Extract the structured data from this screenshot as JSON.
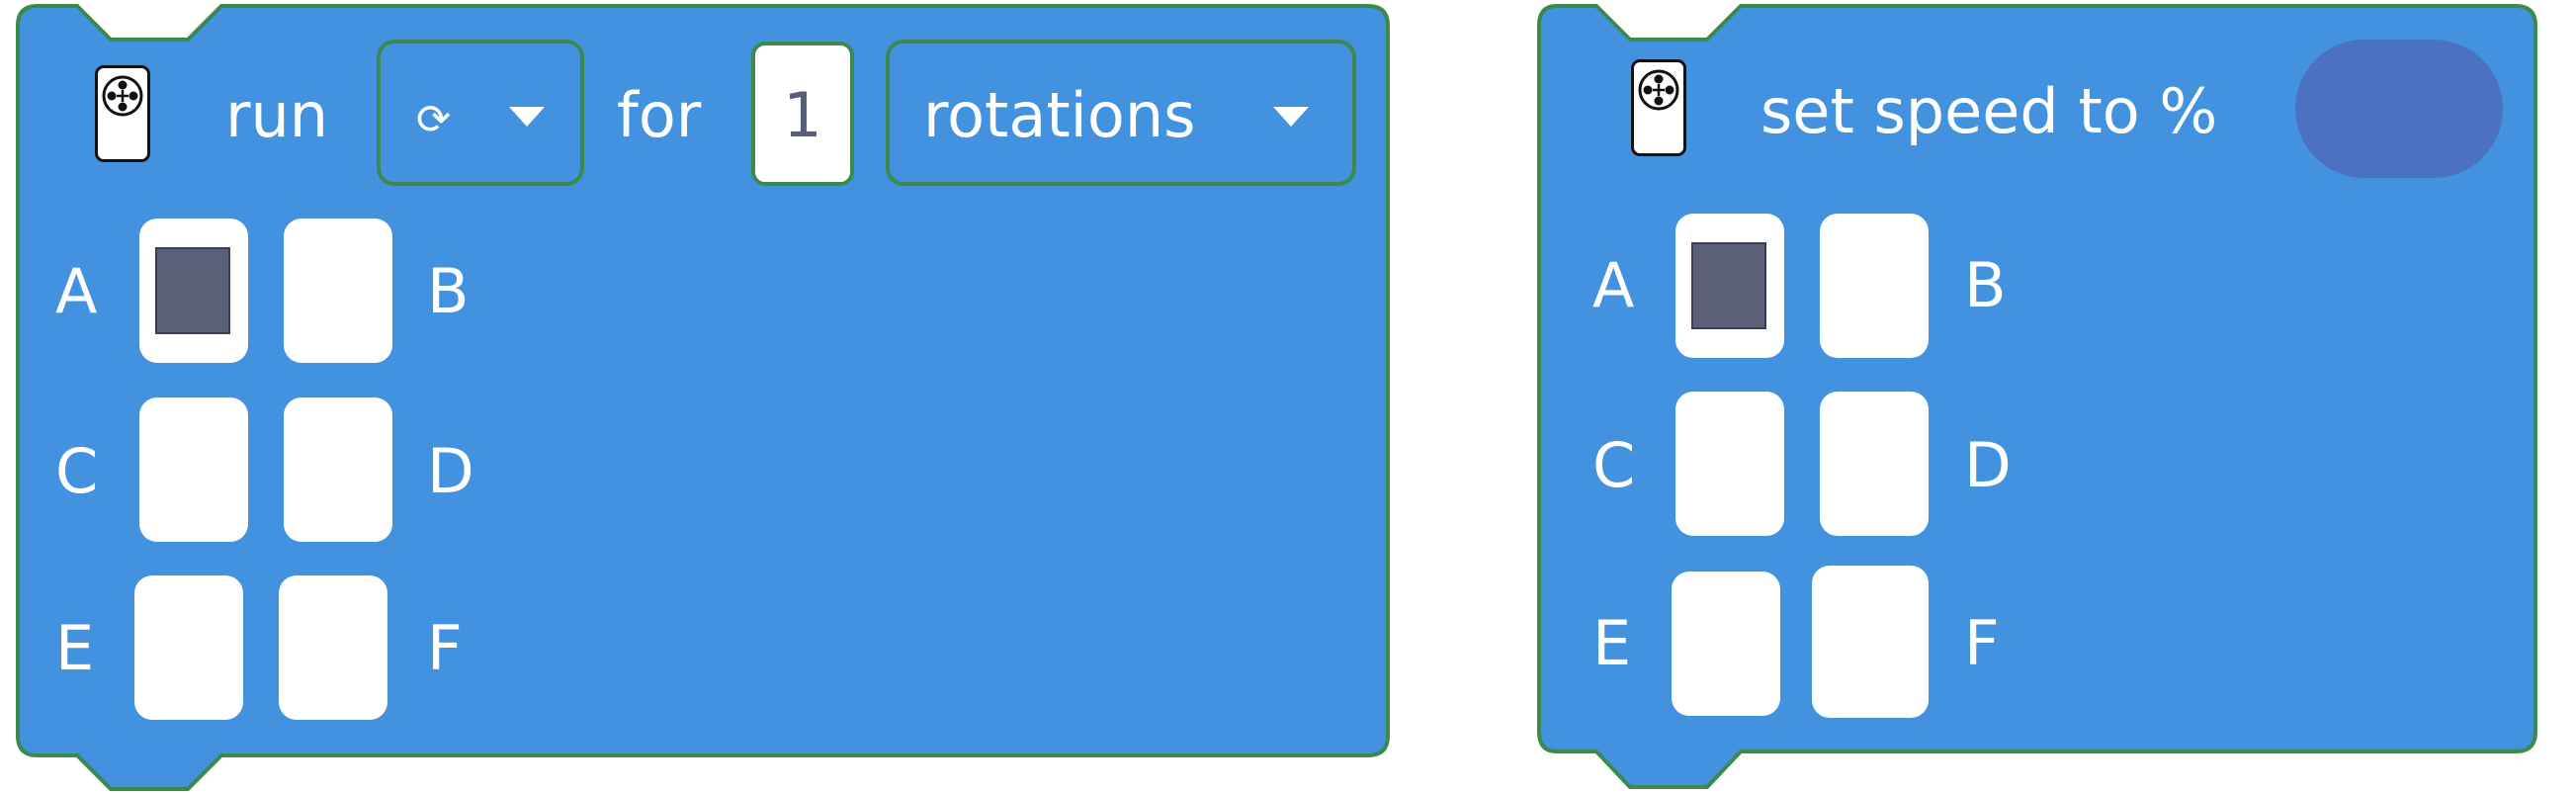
{
  "colors": {
    "block_fill": "#4392e0",
    "block_outline": "#3a8a4e",
    "oval_input": "#4b71c0",
    "port_empty": "#ffffff",
    "port_selected_fill": "#5b5f77",
    "text": "#ffffff",
    "number_text": "#575e75"
  },
  "run_block": {
    "icon": "motor-icon",
    "run_label": "run",
    "direction_dropdown": {
      "glyph": "⟳",
      "icon": "clockwise-arrow-icon",
      "caret_icon": "caret-down-icon"
    },
    "for_label": "for",
    "amount_value": "1",
    "unit_dropdown": {
      "label": "rotations",
      "caret_icon": "caret-down-icon"
    },
    "ports": [
      {
        "letter": "A",
        "selected": true
      },
      {
        "letter": "B",
        "selected": false
      },
      {
        "letter": "C",
        "selected": false
      },
      {
        "letter": "D",
        "selected": false
      },
      {
        "letter": "E",
        "selected": false
      },
      {
        "letter": "F",
        "selected": false
      }
    ]
  },
  "speed_block": {
    "icon": "motor-icon",
    "set_speed_label": "set speed to %",
    "speed_value": "",
    "ports": [
      {
        "letter": "A",
        "selected": true
      },
      {
        "letter": "B",
        "selected": false
      },
      {
        "letter": "C",
        "selected": false
      },
      {
        "letter": "D",
        "selected": false
      },
      {
        "letter": "E",
        "selected": false
      },
      {
        "letter": "F",
        "selected": false
      }
    ]
  }
}
